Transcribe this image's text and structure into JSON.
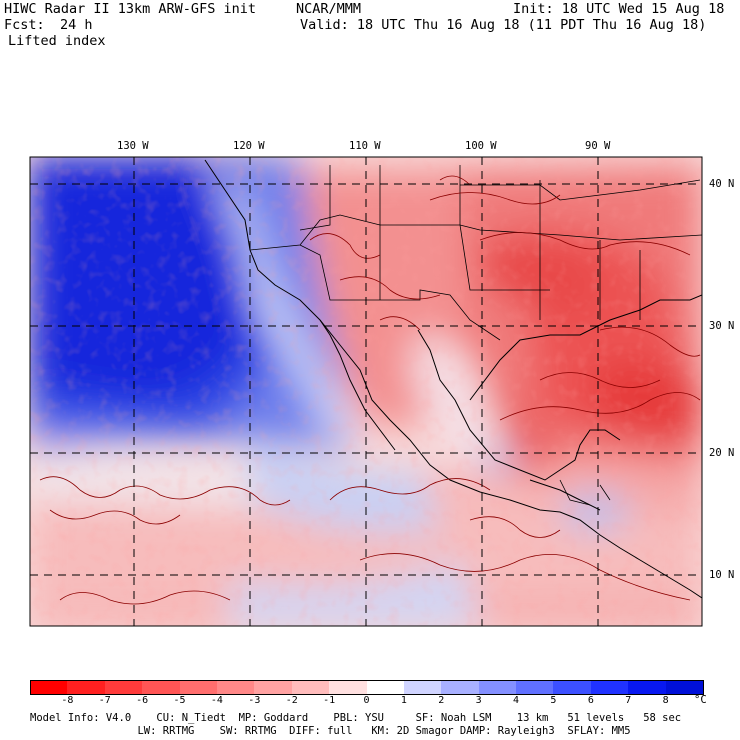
{
  "header": {
    "title": "HIWC Radar II 13km ARW-GFS init",
    "center": "NCAR/MMM",
    "init": "Init: 18 UTC Wed 15 Aug 18",
    "fcst_label": "Fcst:",
    "fcst_value": "24 h",
    "valid": "Valid: 18 UTC Thu 16 Aug 18 (11 PDT Thu 16 Aug 18)",
    "field": "Lifted index"
  },
  "map": {
    "lon_labels": [
      "130 W",
      "120 W",
      "110 W",
      "100 W",
      "90 W"
    ],
    "lat_labels": [
      "40 N",
      "30 N",
      "20 N",
      "10 N"
    ],
    "colors": {
      "ocean_stable": "#1530e0",
      "stable_mid": "#7888f0",
      "neutral": "#f8e0e0",
      "unstable": "#f08080",
      "very_unstable": "#e83838",
      "contour": "#8b0000"
    }
  },
  "colorbar": {
    "labels": [
      "-8",
      "-7",
      "-6",
      "-5",
      "-4",
      "-3",
      "-2",
      "-1",
      "0",
      "1",
      "2",
      "3",
      "4",
      "5",
      "6",
      "7",
      "8"
    ],
    "unit": "°C",
    "colors": [
      "#ff0000",
      "#ff2020",
      "#ff3b3b",
      "#ff5555",
      "#ff6e6e",
      "#ff8888",
      "#ffa2a2",
      "#ffbcbc",
      "#ffe0e0",
      "#ffffff",
      "#d0d4ff",
      "#a8b0ff",
      "#8490ff",
      "#6070ff",
      "#3c50ff",
      "#2032ff",
      "#0818f0",
      "#0010d8"
    ]
  },
  "footer": {
    "line1": "Model Info: V4.0    CU: N_Tiedt  MP: Goddard    PBL: YSU     SF: Noah LSM    13 km   51 levels   58 sec",
    "line2": "                 LW: RRTMG    SW: RRTMG  DIFF: full   KM: 2D Smagor DAMP: Rayleigh3  SFLAY: MM5"
  }
}
